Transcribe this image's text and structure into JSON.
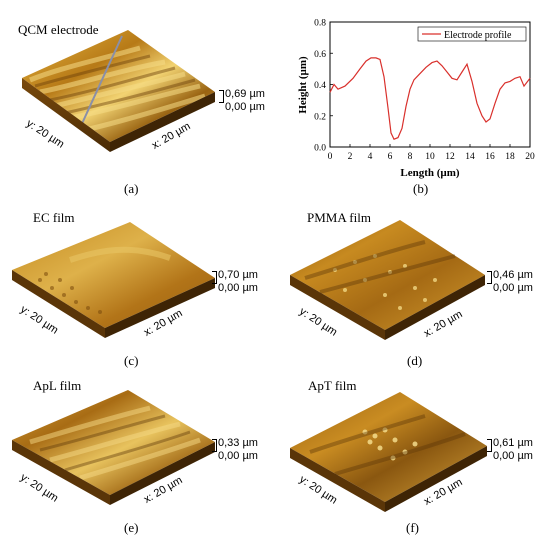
{
  "panels": {
    "a": {
      "title": "QCM electrode",
      "caption": "(a)",
      "zmax": "0,69 µm",
      "zmin": "0,00 µm",
      "xlabel": "x: 20 µm",
      "ylabel": "y: 20 µm"
    },
    "c": {
      "title": "EC film",
      "caption": "(c)",
      "zmax": "0,70 µm",
      "zmin": "0,00 µm",
      "xlabel": "x: 20 µm",
      "ylabel": "y: 20 µm"
    },
    "d": {
      "title": "PMMA film",
      "caption": "(d)",
      "zmax": "0,46 µm",
      "zmin": "0,00 µm",
      "xlabel": "x: 20 µm",
      "ylabel": "y: 20 µm"
    },
    "e": {
      "title": "ApL film",
      "caption": "(e)",
      "zmax": "0,33 µm",
      "zmin": "0,00 µm",
      "xlabel": "x: 20 µm",
      "ylabel": "y: 20 µm"
    },
    "f": {
      "title": "ApT film",
      "caption": "(f)",
      "zmax": "0,61 µm",
      "zmin": "0,00 µm",
      "xlabel": "x: 20 µm",
      "ylabel": "y: 20 µm"
    }
  },
  "chart_caption": "(b)",
  "chart_data": {
    "type": "line",
    "xlabel": "Length (µm)",
    "ylabel": "Height (µm)",
    "xlim": [
      0,
      20
    ],
    "ylim": [
      0.0,
      0.8
    ],
    "xticks": [
      "0",
      "2",
      "4",
      "6",
      "8",
      "10",
      "12",
      "14",
      "16",
      "18",
      "20"
    ],
    "yticks": [
      "0.0",
      "0.2",
      "0.4",
      "0.6",
      "0.8"
    ],
    "grid": false,
    "legend": "top-right",
    "series": [
      {
        "name": "Electrode profile",
        "color": "#d9302c",
        "x": [
          0,
          0.4,
          0.8,
          1.5,
          2.3,
          3.0,
          3.6,
          4.1,
          4.6,
          5.0,
          5.4,
          5.8,
          6.1,
          6.4,
          6.8,
          7.2,
          7.6,
          8.0,
          8.4,
          9.0,
          9.6,
          10.2,
          10.7,
          11.2,
          11.7,
          12.2,
          12.7,
          13.2,
          13.7,
          14.2,
          14.7,
          15.2,
          15.6,
          16.0,
          16.5,
          17.0,
          17.5,
          18.0,
          18.5,
          19.0,
          19.4,
          20.0
        ],
        "y": [
          0.35,
          0.4,
          0.37,
          0.39,
          0.44,
          0.5,
          0.55,
          0.57,
          0.57,
          0.56,
          0.45,
          0.25,
          0.09,
          0.05,
          0.06,
          0.12,
          0.26,
          0.37,
          0.43,
          0.47,
          0.51,
          0.54,
          0.55,
          0.52,
          0.48,
          0.44,
          0.43,
          0.48,
          0.53,
          0.42,
          0.28,
          0.2,
          0.16,
          0.18,
          0.28,
          0.37,
          0.41,
          0.42,
          0.44,
          0.45,
          0.39,
          0.44
        ]
      }
    ]
  },
  "colors": {
    "afm_light": "#f0cf6a",
    "afm_mid": "#c98c1c",
    "afm_dark": "#5a3508",
    "line": "#d9302c"
  }
}
